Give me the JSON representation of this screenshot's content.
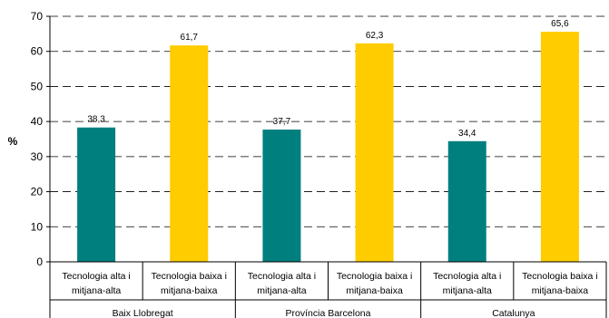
{
  "chart_data": {
    "type": "bar",
    "ylabel": "%",
    "ylim": [
      0,
      70
    ],
    "yticks": [
      0,
      10,
      20,
      30,
      40,
      50,
      60,
      70
    ],
    "grid": true,
    "groups": [
      {
        "label": "Baix Llobregat",
        "bars": [
          {
            "category": [
              "Tecnologia alta i",
              "mitjana-alta"
            ],
            "value": 38.3,
            "label": "38,3",
            "color": "#007F7F"
          },
          {
            "category": [
              "Tecnologia baixa i",
              "mitjana-baixa"
            ],
            "value": 61.7,
            "label": "61,7",
            "color": "#FFCC00"
          }
        ]
      },
      {
        "label": "Província Barcelona",
        "bars": [
          {
            "category": [
              "Tecnologia alta i",
              "mitjana-alta"
            ],
            "value": 37.7,
            "label": "37,7",
            "color": "#007F7F"
          },
          {
            "category": [
              "Tecnologia baixa i",
              "mitjana-baixa"
            ],
            "value": 62.3,
            "label": "62,3",
            "color": "#FFCC00"
          }
        ]
      },
      {
        "label": "Catalunya",
        "bars": [
          {
            "category": [
              "Tecnologia alta i",
              "mitjana-alta"
            ],
            "value": 34.4,
            "label": "34,4",
            "color": "#007F7F"
          },
          {
            "category": [
              "Tecnologia baixa i",
              "mitjana-baixa"
            ],
            "value": 65.6,
            "label": "65,6",
            "color": "#FFCC00"
          }
        ]
      }
    ]
  }
}
